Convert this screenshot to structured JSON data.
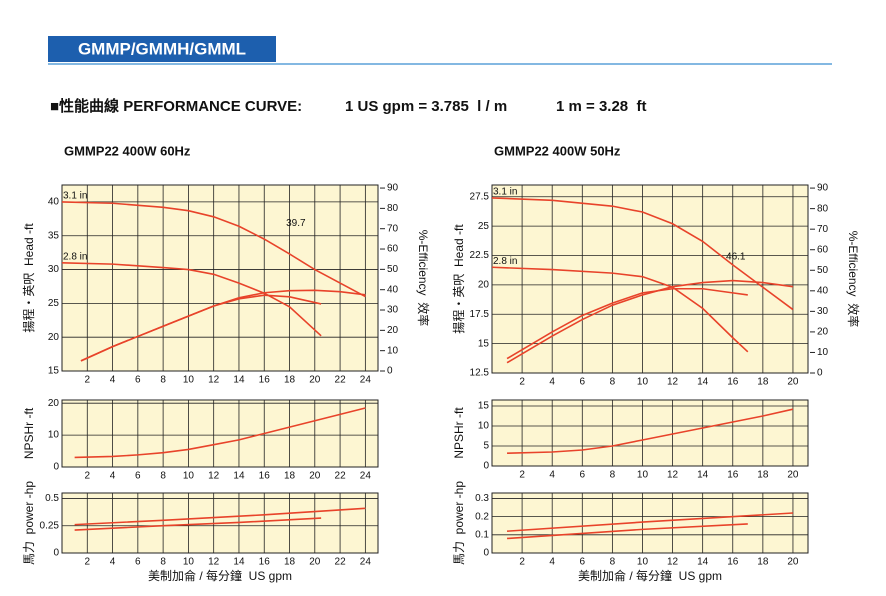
{
  "header": {
    "banner": "GMMP/GMMH/GMML",
    "title": "■性能曲線 PERFORMANCE CURVE:",
    "conversion1": "1 US gpm = 3.785  l / m",
    "conversion2": "1 m = 3.28  ft"
  },
  "chart_data": [
    {
      "type": "line",
      "title": "GMMP22 400W  60Hz",
      "ylabel": "揚程・英呎  Head -ft",
      "y2label": "%-Efficiency  效率",
      "xlim": [
        0,
        25
      ],
      "xticks": [
        2,
        4,
        6,
        8,
        10,
        12,
        14,
        16,
        18,
        20,
        22,
        24
      ],
      "ylim": [
        15,
        42.5
      ],
      "yticks": [
        15,
        20,
        25,
        30,
        35,
        40
      ],
      "y2lim": [
        0,
        91.5
      ],
      "y2ticks": [
        0,
        10,
        20,
        30,
        40,
        50,
        60,
        70,
        80,
        90
      ],
      "grid": true,
      "series": [
        {
          "name": "3.1 in",
          "color": "#e8432a",
          "x": [
            0,
            4,
            8,
            10,
            12,
            14,
            16,
            18,
            20,
            22,
            24
          ],
          "values": [
            40,
            39.8,
            39.2,
            38.7,
            37.8,
            36.4,
            34.5,
            32.3,
            30,
            28,
            26
          ]
        },
        {
          "name": "2.8 in",
          "color": "#e8432a",
          "x": [
            0,
            4,
            8,
            10,
            12,
            14,
            16,
            18,
            20.5
          ],
          "values": [
            31,
            30.8,
            30.3,
            30,
            29.3,
            28,
            26.5,
            24.5,
            20.2
          ]
        },
        {
          "color": "#e8432a",
          "axis": "y2",
          "x": [
            1.5,
            4,
            6,
            8,
            10,
            12,
            14,
            16,
            18,
            20,
            22,
            24
          ],
          "values": [
            5,
            12,
            17,
            22,
            27,
            32,
            36,
            38.5,
            39.5,
            39.7,
            39,
            37.5
          ]
        },
        {
          "color": "#e8432a",
          "axis": "y2",
          "x": [
            1.5,
            4,
            6,
            8,
            10,
            12,
            14,
            16,
            18,
            20.5
          ],
          "values": [
            5,
            12,
            17,
            22,
            27,
            32,
            35.5,
            37.3,
            36.5,
            33
          ]
        }
      ],
      "annotations": [
        {
          "text": "39.7",
          "x": 18.5,
          "y": 36.8
        }
      ]
    },
    {
      "type": "line",
      "ylabel": "NPSHr -ft",
      "xlim": [
        0,
        25
      ],
      "xticks": [
        2,
        4,
        6,
        8,
        10,
        12,
        14,
        16,
        18,
        20,
        22,
        24
      ],
      "ylim": [
        0,
        21
      ],
      "yticks": [
        0,
        10,
        20
      ],
      "grid": true,
      "series": [
        {
          "color": "#e8432a",
          "x": [
            1,
            4,
            6,
            8,
            10,
            12,
            14,
            16,
            18,
            20,
            22,
            24
          ],
          "values": [
            3,
            3.3,
            3.8,
            4.5,
            5.5,
            7,
            8.5,
            10.5,
            12.5,
            14.5,
            16.5,
            18.5
          ]
        }
      ]
    },
    {
      "type": "line",
      "ylabel": "馬力  power -hp",
      "xlabel": "美制加侖 / 每分鐘  US gpm",
      "xlim": [
        0,
        25
      ],
      "xticks": [
        2,
        4,
        6,
        8,
        10,
        12,
        14,
        16,
        18,
        20,
        22,
        24
      ],
      "ylim": [
        0,
        0.55
      ],
      "yticks": [
        0,
        0.25,
        0.5
      ],
      "grid": true,
      "series": [
        {
          "color": "#e8432a",
          "x": [
            1,
            8,
            16,
            24
          ],
          "values": [
            0.26,
            0.3,
            0.35,
            0.41
          ]
        },
        {
          "color": "#e8432a",
          "x": [
            1,
            8,
            14,
            20.5
          ],
          "values": [
            0.21,
            0.25,
            0.28,
            0.32
          ]
        }
      ]
    },
    {
      "type": "line",
      "title": "GMMP22 400W  50Hz",
      "ylabel": "揚程・英呎  Head -ft",
      "y2label": "%-Efficiency  效率",
      "xlim": [
        0,
        21
      ],
      "xticks": [
        2,
        4,
        6,
        8,
        10,
        12,
        14,
        16,
        18,
        20
      ],
      "ylim": [
        12.5,
        28.5
      ],
      "yticks": [
        12.5,
        15,
        17.5,
        20,
        22.5,
        25,
        27.5
      ],
      "y2lim": [
        0,
        91.5
      ],
      "y2ticks": [
        0,
        10,
        20,
        30,
        40,
        50,
        60,
        70,
        80,
        90
      ],
      "grid": true,
      "series": [
        {
          "name": "3.1 in",
          "color": "#e8432a",
          "x": [
            0,
            4,
            8,
            10,
            12,
            14,
            16,
            18,
            20
          ],
          "values": [
            27.4,
            27.2,
            26.7,
            26.2,
            25.2,
            23.7,
            21.7,
            19.8,
            17.9
          ]
        },
        {
          "name": "2.8 in",
          "color": "#e8432a",
          "x": [
            0,
            4,
            8,
            10,
            12,
            14,
            16,
            17
          ],
          "values": [
            21.5,
            21.3,
            21,
            20.7,
            19.8,
            18,
            15.5,
            14.3
          ]
        },
        {
          "color": "#e8432a",
          "axis": "y2",
          "x": [
            1,
            4,
            6,
            8,
            10,
            12,
            14,
            16,
            18,
            20
          ],
          "values": [
            5,
            18,
            26,
            33,
            38,
            42,
            44,
            45,
            44,
            42
          ]
        },
        {
          "color": "#e8432a",
          "axis": "y2",
          "x": [
            1,
            4,
            6,
            8,
            10,
            12,
            14,
            16,
            17
          ],
          "values": [
            7,
            20,
            28,
            34,
            39,
            41,
            41,
            39,
            38
          ]
        }
      ],
      "annotations": [
        {
          "text": "46.1",
          "x": 16.2,
          "y": 22.4
        }
      ]
    },
    {
      "type": "line",
      "ylabel": "NPSHr -ft",
      "xlim": [
        0,
        21
      ],
      "xticks": [
        2,
        4,
        6,
        8,
        10,
        12,
        14,
        16,
        18,
        20
      ],
      "ylim": [
        0,
        16.5
      ],
      "yticks": [
        0,
        5,
        10,
        15
      ],
      "grid": true,
      "series": [
        {
          "color": "#e8432a",
          "x": [
            1,
            4,
            6,
            8,
            10,
            12,
            14,
            16,
            18,
            20
          ],
          "values": [
            3.2,
            3.5,
            4,
            5,
            6.5,
            8,
            9.5,
            11,
            12.5,
            14.2
          ]
        }
      ]
    },
    {
      "type": "line",
      "ylabel": "馬力  power -hp",
      "xlabel": "美制加侖 / 每分鐘  US gpm",
      "xlim": [
        0,
        21
      ],
      "xticks": [
        2,
        4,
        6,
        8,
        10,
        12,
        14,
        16,
        18,
        20
      ],
      "ylim": [
        0,
        0.33
      ],
      "yticks": [
        0,
        0.1,
        0.2,
        0.3
      ],
      "grid": true,
      "series": [
        {
          "color": "#e8432a",
          "x": [
            1,
            10,
            20
          ],
          "values": [
            0.12,
            0.17,
            0.22
          ]
        },
        {
          "color": "#e8432a",
          "x": [
            1,
            10,
            17
          ],
          "values": [
            0.08,
            0.13,
            0.16
          ]
        }
      ]
    }
  ]
}
